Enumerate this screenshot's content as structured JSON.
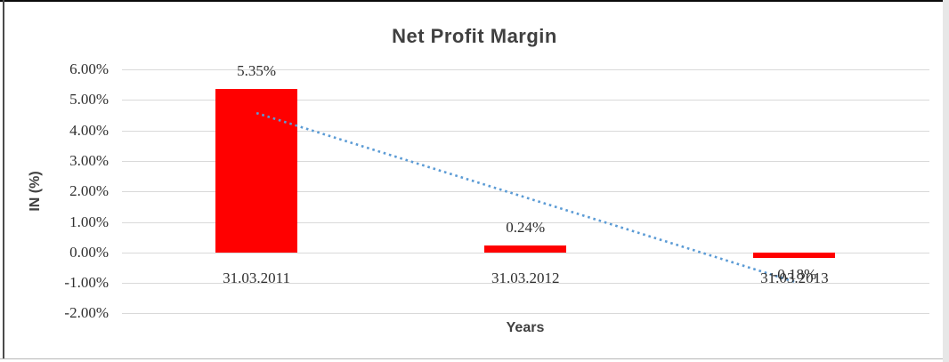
{
  "window": {
    "border_top_color": "#0a0a0a",
    "border_left_color": "#4a4a4a",
    "border_bottom_color": "#b7b7b7",
    "right_strip_color": "#e7e7e7"
  },
  "chart_data": {
    "type": "bar",
    "title": "Net Profit Margin",
    "xlabel": "Years",
    "ylabel": "IN (%)",
    "categories": [
      "31.03.2011",
      "31.03.2012",
      "31.03.2013"
    ],
    "series": [
      {
        "name": "Net Profit Margin",
        "values": [
          5.35,
          0.24,
          -0.18
        ]
      }
    ],
    "data_labels": [
      "5.35%",
      "0.24%",
      "-0.18%"
    ],
    "ytick_labels": [
      "6.00%",
      "5.00%",
      "4.00%",
      "3.00%",
      "2.00%",
      "1.00%",
      "0.00%",
      "-1.00%",
      "-2.00%"
    ],
    "ytick_values": [
      6,
      5,
      4,
      3,
      2,
      1,
      0,
      -1,
      -2
    ],
    "ylim": [
      -2,
      6
    ],
    "grid": true,
    "legend": "none",
    "trendline": {
      "type": "linear",
      "style": "dotted"
    },
    "colors": {
      "bar": "#FF0000",
      "trendline": "#5B9BD5",
      "gridline": "#D9D9D9",
      "title_text": "#404040",
      "axis_text": "#2e2e2e"
    }
  }
}
